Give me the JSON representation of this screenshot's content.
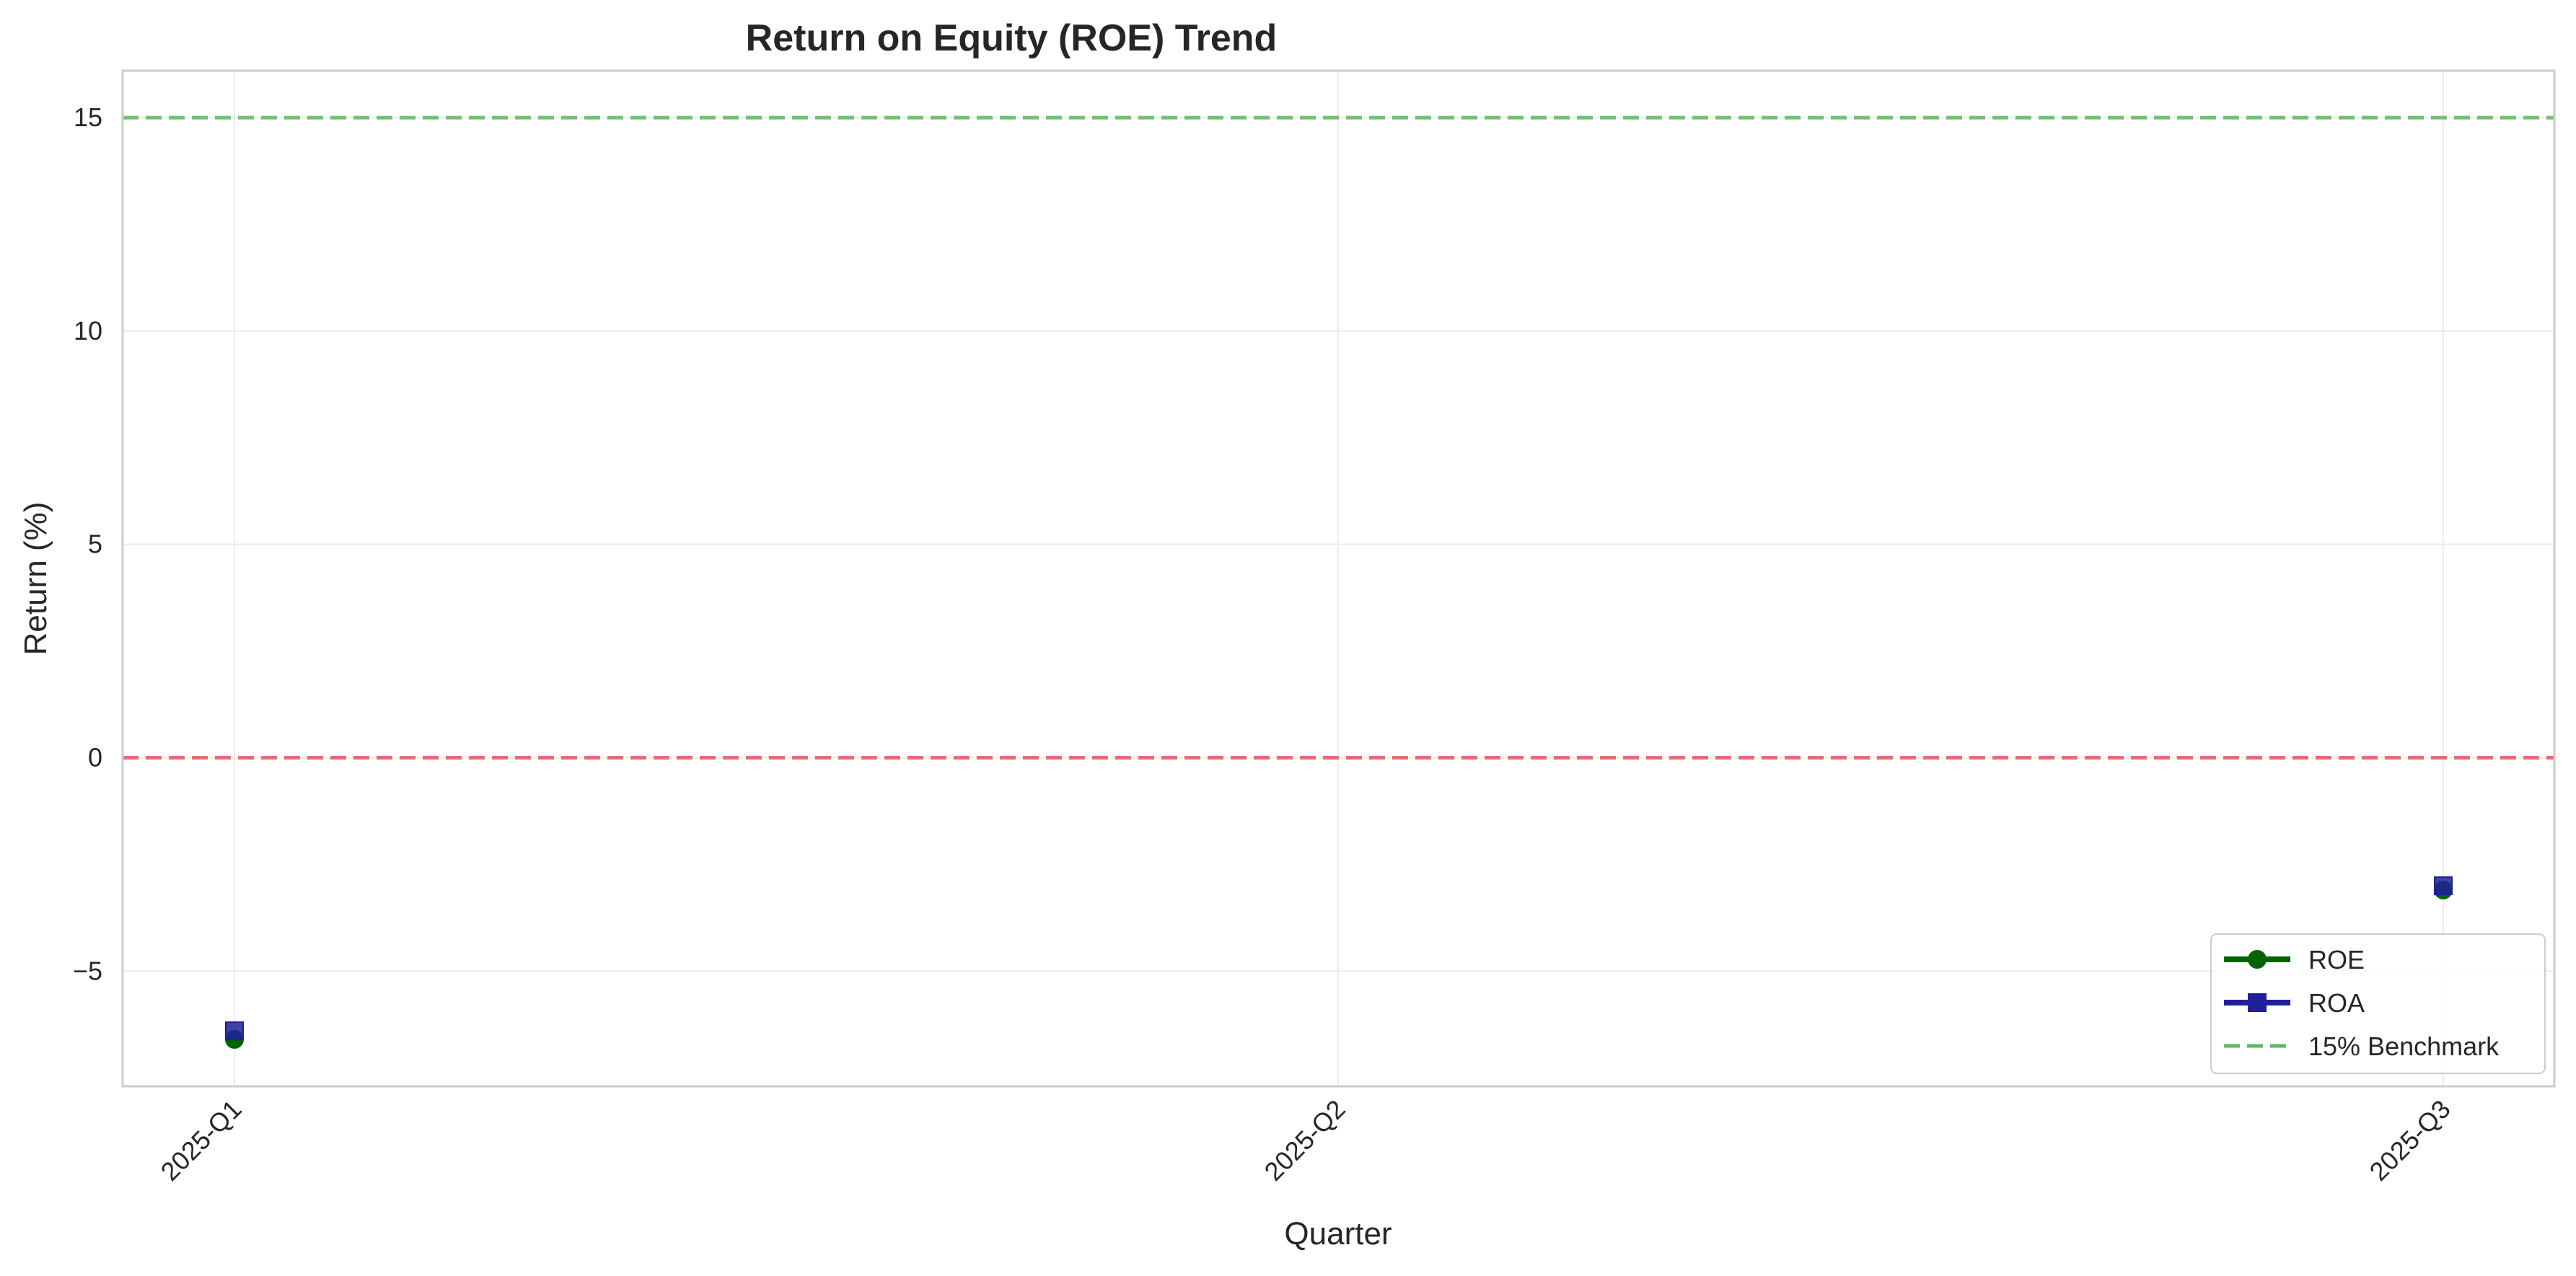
{
  "chart_data": {
    "type": "line",
    "title": "Return on Equity (ROE) Trend",
    "xlabel": "Quarter",
    "ylabel": "Return (%)",
    "categories": [
      "2025-Q1",
      "2025-Q2",
      "2025-Q3"
    ],
    "ylim": [
      -7.7,
      16.1
    ],
    "yticks": [
      -5,
      0,
      5,
      10,
      15
    ],
    "ytick_labels": [
      "−5",
      "0",
      "5",
      "10",
      "15"
    ],
    "grid": true,
    "legend_position": "lower-right",
    "series": [
      {
        "name": "ROE",
        "values": [
          -6.6,
          null,
          -3.1
        ],
        "color": "#006400",
        "marker": "circle"
      },
      {
        "name": "ROA",
        "values": [
          -6.4,
          null,
          -3.0
        ],
        "color": "#1f1f99",
        "marker": "square"
      }
    ],
    "reference_lines": [
      {
        "name": "15% Benchmark",
        "y": 15,
        "color": "#5cb85c",
        "style": "dashed",
        "in_legend": true
      },
      {
        "name": "",
        "y": 0,
        "color": "#e8555f",
        "style": "dashed",
        "in_legend": false
      }
    ]
  }
}
